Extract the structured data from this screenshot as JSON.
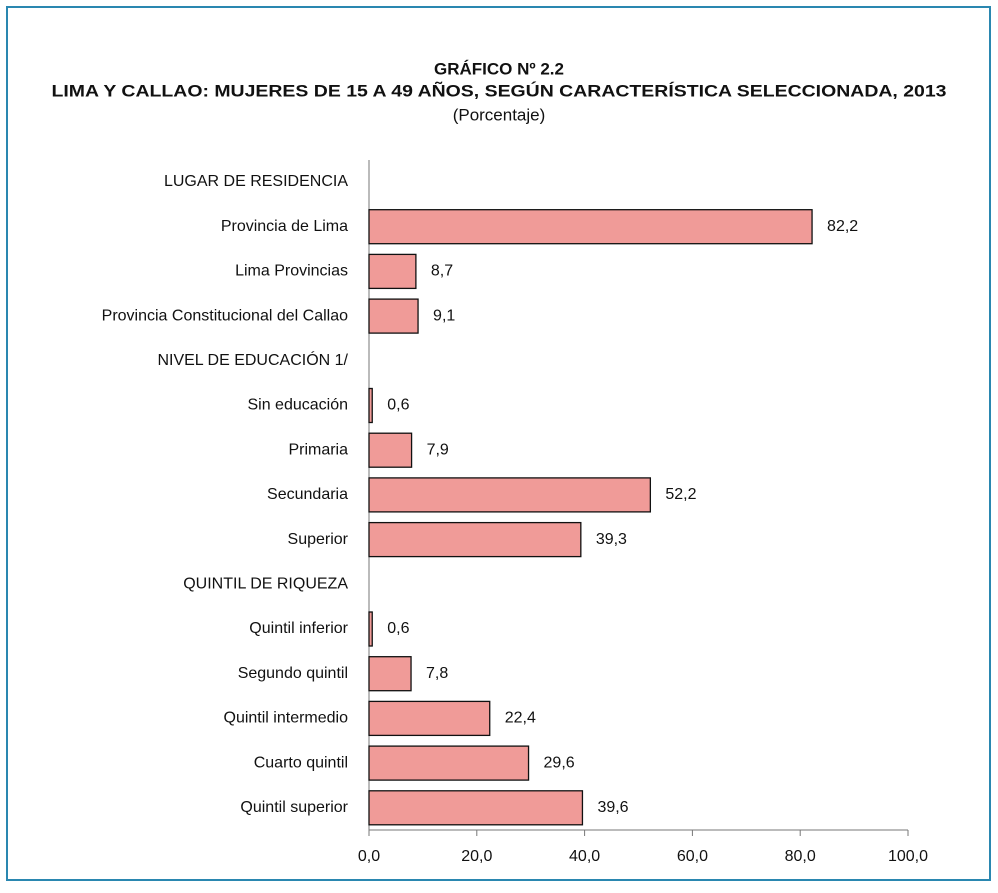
{
  "chart_data": {
    "type": "barh",
    "title": "GRÁFICO Nº 2.2",
    "subtitle": "LIMA Y CALLAO: MUJERES DE 15 A 49 AÑOS, SEGÚN CARACTERÍSTICA SELECCIONADA, 2013",
    "unit_note": "(Porcentaje)",
    "categories": [
      "LUGAR DE RESIDENCIA",
      "Provincia de Lima",
      "Lima Provincias",
      "Provincia Constitucional del Callao",
      "NIVEL DE EDUCACIÓN 1/",
      "Sin educación",
      "Primaria",
      "Secundaria",
      "Superior",
      "QUINTIL DE RIQUEZA",
      "Quintil inferior",
      "Segundo quintil",
      "Quintil intermedio",
      "Cuarto quintil",
      "Quintil superior"
    ],
    "values": [
      null,
      82.2,
      8.7,
      9.1,
      null,
      0.6,
      7.9,
      52.2,
      39.3,
      null,
      0.6,
      7.8,
      22.4,
      29.6,
      39.6
    ],
    "value_labels": [
      null,
      "82,2",
      "8,7",
      "9,1",
      null,
      "0,6",
      "7,9",
      "52,2",
      "39,3",
      null,
      "0,6",
      "7,8",
      "22,4",
      "29,6",
      "39,6"
    ],
    "color": "#f09b98",
    "xlim": [
      0,
      100
    ],
    "xticks": [
      {
        "value": 0,
        "label": "0,0"
      },
      {
        "value": 20,
        "label": "20,0"
      },
      {
        "value": 40,
        "label": "40,0"
      },
      {
        "value": 60,
        "label": "60,0"
      },
      {
        "value": 80,
        "label": "80,0"
      },
      {
        "value": 100,
        "label": "100,0"
      }
    ],
    "grid": false
  }
}
